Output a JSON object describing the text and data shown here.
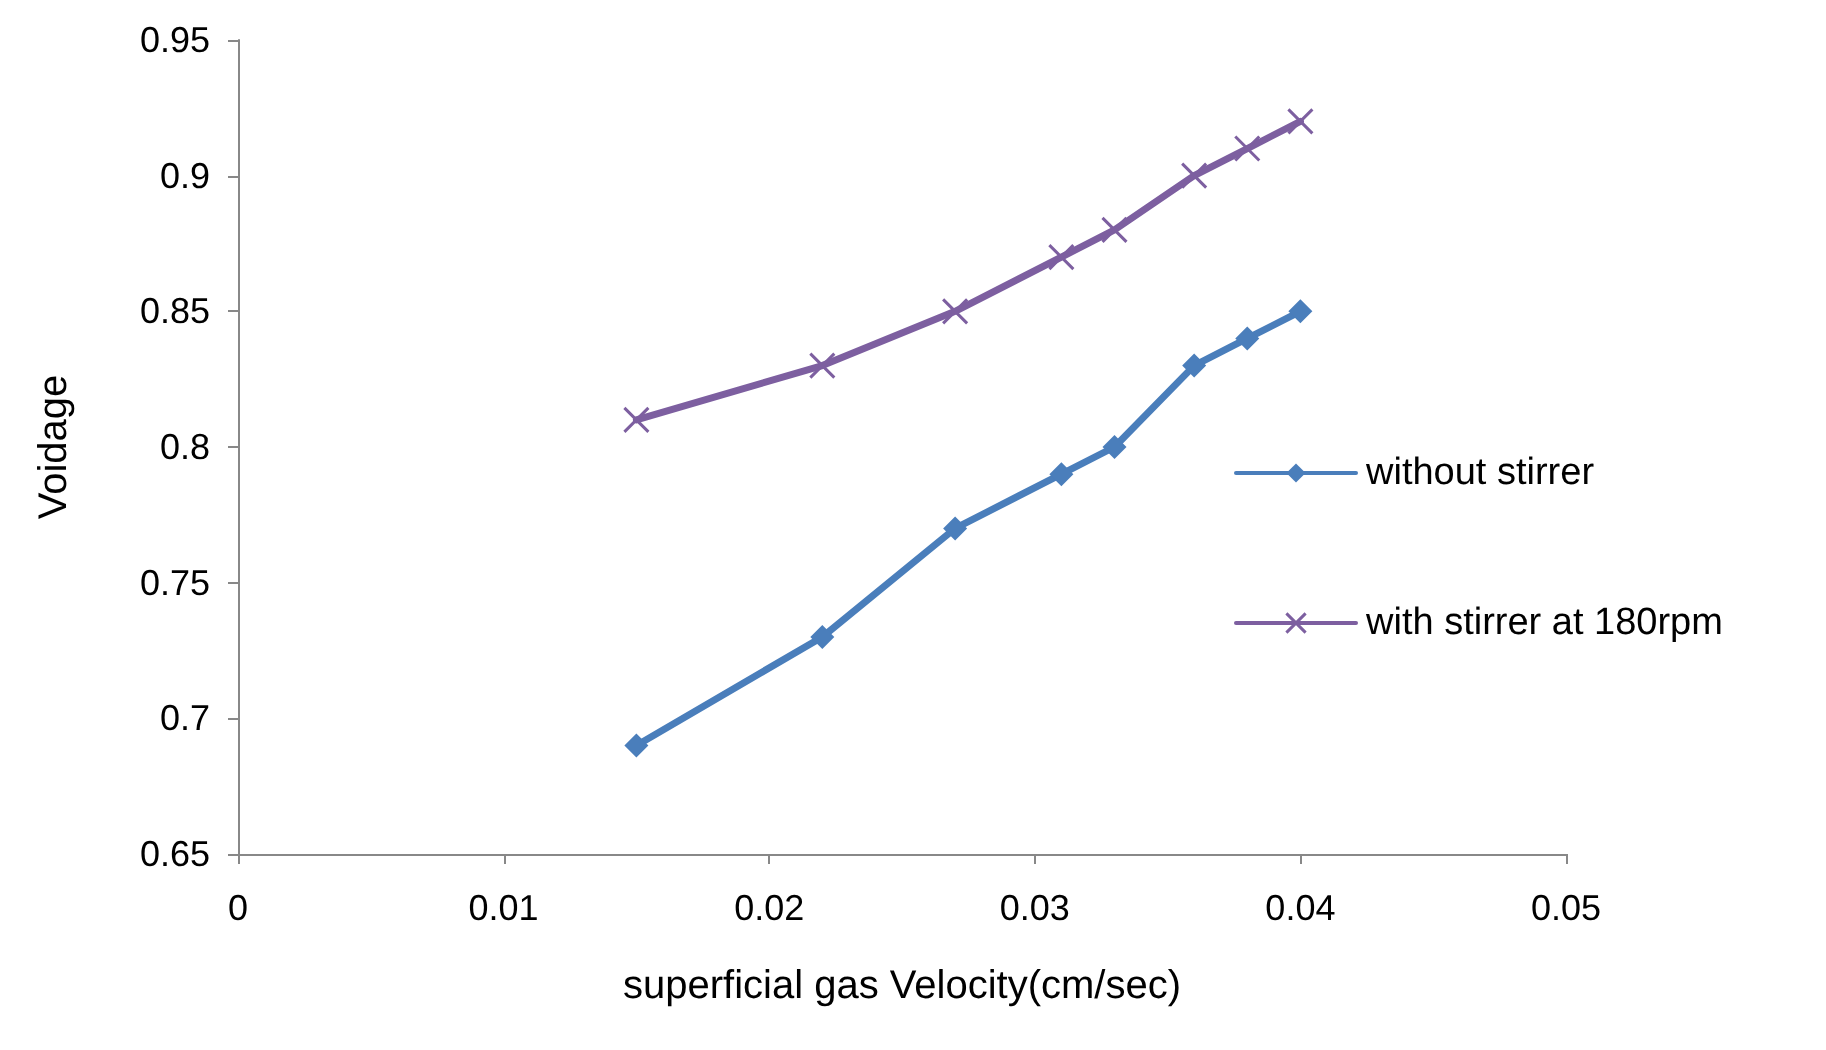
{
  "chart_data": {
    "type": "line",
    "xlabel": "superficial gas Velocity(cm/sec)",
    "ylabel": "Voidage",
    "x": [
      0.015,
      0.022,
      0.027,
      0.031,
      0.033,
      0.036,
      0.038,
      0.04
    ],
    "series": [
      {
        "name": "without stirrer",
        "color": "#4a7ebb",
        "marker": "diamond",
        "values": [
          0.69,
          0.73,
          0.77,
          0.79,
          0.8,
          0.83,
          0.84,
          0.85
        ]
      },
      {
        "name": "with stirrer at 180rpm",
        "color": "#7d5fa0",
        "marker": "cross",
        "values": [
          0.81,
          0.83,
          0.85,
          0.87,
          0.88,
          0.9,
          0.91,
          0.92
        ]
      }
    ],
    "xlim": [
      0,
      0.05
    ],
    "xticks": [
      0,
      0.01,
      0.02,
      0.03,
      0.04,
      0.05
    ],
    "ylim": [
      0.65,
      0.95
    ],
    "yticks": [
      0.65,
      0.7,
      0.75,
      0.8,
      0.85,
      0.9,
      0.95
    ],
    "grid": false,
    "legend": "right",
    "line_style": "solid"
  }
}
